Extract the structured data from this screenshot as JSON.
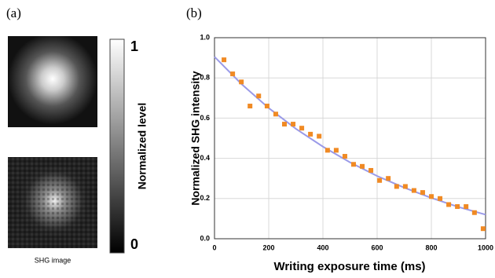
{
  "panel_a": {
    "label": "(a)",
    "caption": "SHG image",
    "colorbar": {
      "label": "Normalized level",
      "ticks": [
        1,
        0
      ]
    }
  },
  "chart_data": {
    "type": "scatter",
    "panel_label": "(b)",
    "x_label": "Writing exposure time (ms)",
    "y_label": "Normalized SHG intensity",
    "x": [
      35,
      67,
      99,
      131,
      163,
      194,
      226,
      258,
      290,
      322,
      354,
      386,
      417,
      449,
      481,
      513,
      545,
      577,
      609,
      641,
      672,
      704,
      736,
      768,
      800,
      832,
      864,
      896,
      928,
      959,
      991
    ],
    "values": [
      0.89,
      0.82,
      0.78,
      0.66,
      0.71,
      0.66,
      0.62,
      0.57,
      0.57,
      0.55,
      0.52,
      0.51,
      0.44,
      0.44,
      0.41,
      0.37,
      0.36,
      0.34,
      0.29,
      0.3,
      0.26,
      0.26,
      0.24,
      0.23,
      0.21,
      0.2,
      0.17,
      0.16,
      0.16,
      0.13,
      0.05
    ],
    "color": "#f08a24",
    "fit": {
      "x": [
        0,
        100,
        200,
        300,
        400,
        500,
        600,
        700,
        800,
        900,
        1000
      ],
      "values": [
        0.905,
        0.769,
        0.65,
        0.547,
        0.458,
        0.38,
        0.312,
        0.254,
        0.203,
        0.158,
        0.12
      ],
      "color": "#9a9ae8"
    },
    "xlim": [
      0,
      1000
    ],
    "ylim": [
      0,
      1
    ],
    "xticks": [
      0,
      200,
      400,
      600,
      800,
      1000
    ],
    "yticks": [
      {
        "value": 0,
        "label": "0.0"
      },
      {
        "value": 0.2,
        "label": "0.2"
      },
      {
        "value": 0.4,
        "label": "0.4"
      },
      {
        "value": 0.6,
        "label": "0.6"
      },
      {
        "value": 0.8,
        "label": "0.8"
      },
      {
        "value": 1,
        "label": "1.0"
      }
    ],
    "grid": true
  }
}
